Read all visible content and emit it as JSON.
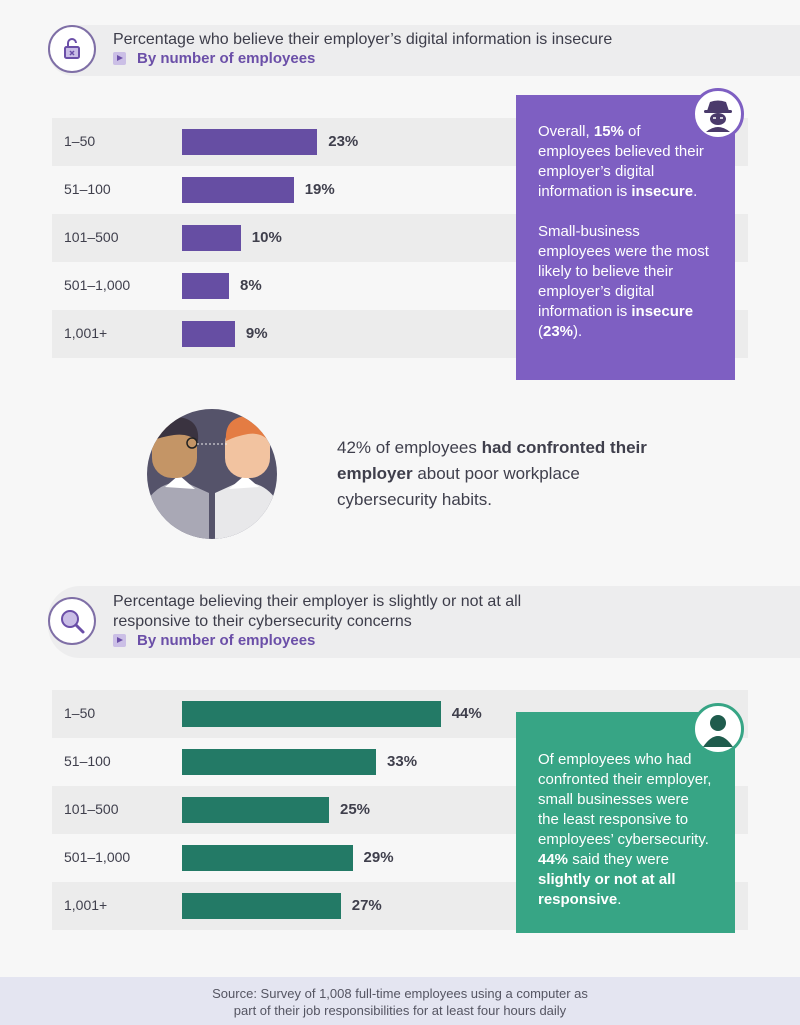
{
  "section1": {
    "title": "Percentage who believe their employer’s digital information is insecure",
    "subtitle": "By number of employees",
    "icon": "padlock-icon"
  },
  "section2": {
    "title_line1": "Percentage believing their employer is slightly or not at all",
    "title_line2": "responsive to their cybersecurity concerns",
    "subtitle": "By number of employees",
    "icon": "magnifier-icon"
  },
  "chart_data": [
    {
      "type": "bar",
      "orientation": "horizontal",
      "categories": [
        "1–50",
        "51–100",
        "101–500",
        "501–1,000",
        "1,001+"
      ],
      "values": [
        23,
        19,
        10,
        8,
        9
      ],
      "value_labels": [
        "23%",
        "19%",
        "10%",
        "8%",
        "9%"
      ],
      "color": "#664ea3",
      "title": "Percentage who believe their employer’s digital information is insecure",
      "xlim": [
        0,
        60
      ]
    },
    {
      "type": "bar",
      "orientation": "horizontal",
      "categories": [
        "1–50",
        "51–100",
        "101–500",
        "501–1,000",
        "1,001+"
      ],
      "values": [
        44,
        33,
        25,
        29,
        27
      ],
      "value_labels": [
        "44%",
        "33%",
        "25%",
        "29%",
        "27%"
      ],
      "color": "#237a66",
      "title": "Percentage believing their employer is slightly or not at all responsive to their cybersecurity concerns",
      "xlim": [
        0,
        60
      ]
    }
  ],
  "callout1": {
    "p1_a": "Overall, ",
    "p1_b": "15%",
    "p1_c": " of employees believed their employer’s digital information is ",
    "p1_d": "insecure",
    "p1_e": ".",
    "p2_a": "Small-business employees were the most likely to believe their employer’s digital information is ",
    "p2_b": "insecure",
    "p2_c": " (",
    "p2_d": "23%",
    "p2_e": ").",
    "bg": "#7e5fc2",
    "icon": "hacker-icon"
  },
  "callout2": {
    "a": "Of employees who had confronted their employer, small businesses were the least responsive to employees’ cybersecurity. ",
    "b": "44%",
    "c": " said they were ",
    "d": "slightly or not at all responsive",
    "e": ".",
    "bg": "#37a585",
    "icon": "user-icon"
  },
  "middle": {
    "a": "42% of employees ",
    "b": "had confronted their employer",
    "c": " about poor workplace cybersecurity habits.",
    "illustration": "two-people-confronting-illustration"
  },
  "footer": {
    "line1": "Source: Survey of 1,008 full-time employees using a computer as",
    "line2": "part of their job responsibilities for at least four hours daily"
  }
}
